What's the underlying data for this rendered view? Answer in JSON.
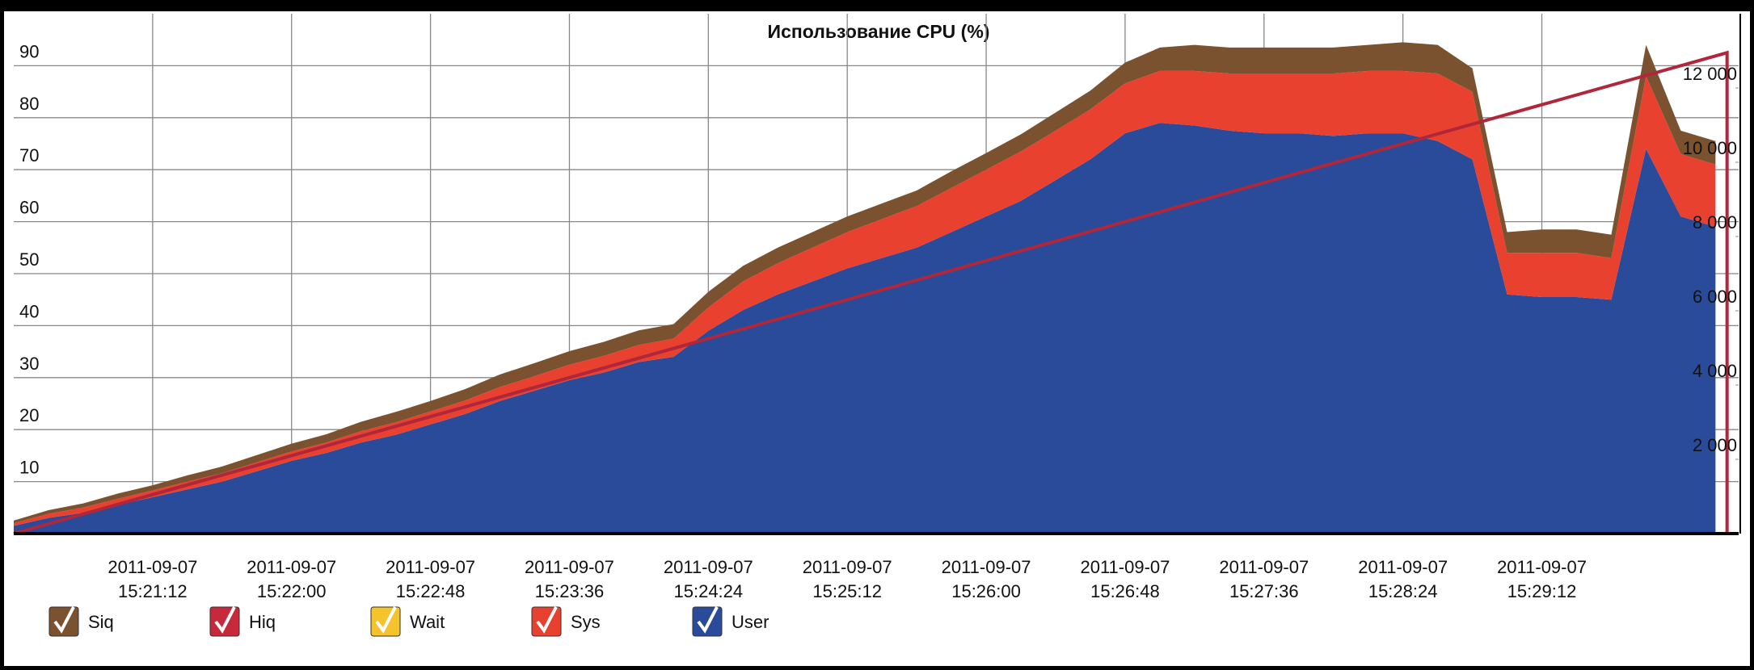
{
  "chart_data": {
    "type": "stacked-area",
    "title": "Использование CPU (%)",
    "x": [
      "2011-09-07T15:20:24",
      "2011-09-07T15:20:36",
      "2011-09-07T15:20:48",
      "2011-09-07T15:21:00",
      "2011-09-07T15:21:12",
      "2011-09-07T15:21:24",
      "2011-09-07T15:21:36",
      "2011-09-07T15:21:48",
      "2011-09-07T15:22:00",
      "2011-09-07T15:22:12",
      "2011-09-07T15:22:24",
      "2011-09-07T15:22:36",
      "2011-09-07T15:22:48",
      "2011-09-07T15:23:00",
      "2011-09-07T15:23:12",
      "2011-09-07T15:23:24",
      "2011-09-07T15:23:36",
      "2011-09-07T15:23:48",
      "2011-09-07T15:24:00",
      "2011-09-07T15:24:12",
      "2011-09-07T15:24:24",
      "2011-09-07T15:24:36",
      "2011-09-07T15:24:48",
      "2011-09-07T15:25:00",
      "2011-09-07T15:25:12",
      "2011-09-07T15:25:24",
      "2011-09-07T15:25:36",
      "2011-09-07T15:25:48",
      "2011-09-07T15:26:00",
      "2011-09-07T15:26:12",
      "2011-09-07T15:26:24",
      "2011-09-07T15:26:36",
      "2011-09-07T15:26:48",
      "2011-09-07T15:27:00",
      "2011-09-07T15:27:12",
      "2011-09-07T15:27:24",
      "2011-09-07T15:27:36",
      "2011-09-07T15:27:48",
      "2011-09-07T15:28:00",
      "2011-09-07T15:28:12",
      "2011-09-07T15:28:24",
      "2011-09-07T15:28:36",
      "2011-09-07T15:28:48",
      "2011-09-07T15:29:00",
      "2011-09-07T15:29:12",
      "2011-09-07T15:29:24",
      "2011-09-07T15:29:36",
      "2011-09-07T15:29:48",
      "2011-09-07T15:30:00",
      "2011-09-07T15:30:12"
    ],
    "xlim": [
      "2011-09-07T15:20:24",
      "2011-09-07T15:30:20"
    ],
    "xticks": [
      {
        "value": "2011-09-07T15:21:12",
        "label": "2011-09-07\n15:21:12"
      },
      {
        "value": "2011-09-07T15:22:00",
        "label": "2011-09-07\n15:22:00"
      },
      {
        "value": "2011-09-07T15:22:48",
        "label": "2011-09-07\n15:22:48"
      },
      {
        "value": "2011-09-07T15:23:36",
        "label": "2011-09-07\n15:23:36"
      },
      {
        "value": "2011-09-07T15:24:24",
        "label": "2011-09-07\n15:24:24"
      },
      {
        "value": "2011-09-07T15:25:12",
        "label": "2011-09-07\n15:25:12"
      },
      {
        "value": "2011-09-07T15:26:00",
        "label": "2011-09-07\n15:26:00"
      },
      {
        "value": "2011-09-07T15:26:48",
        "label": "2011-09-07\n15:26:48"
      },
      {
        "value": "2011-09-07T15:27:36",
        "label": "2011-09-07\n15:27:36"
      },
      {
        "value": "2011-09-07T15:28:24",
        "label": "2011-09-07\n15:28:24"
      },
      {
        "value": "2011-09-07T15:29:12",
        "label": "2011-09-07\n15:29:12"
      }
    ],
    "ylim": [
      0,
      100
    ],
    "yticks": [
      10,
      20,
      30,
      40,
      50,
      60,
      70,
      80,
      90
    ],
    "y2lim": [
      0,
      14000
    ],
    "y2ticks": [
      {
        "value": 2000,
        "label": "2 000"
      },
      {
        "value": 4000,
        "label": "4 000"
      },
      {
        "value": 6000,
        "label": "6 000"
      },
      {
        "value": 8000,
        "label": "8 000"
      },
      {
        "value": 10000,
        "label": "10 000"
      },
      {
        "value": 12000,
        "label": "12 000"
      }
    ],
    "grid": true,
    "stacked": true,
    "series": [
      {
        "name": "Siq",
        "color": "#7a5230",
        "values": [
          0.5,
          0.7,
          0.8,
          1,
          1,
          1.2,
          1.3,
          1.4,
          1.5,
          1.6,
          1.8,
          2,
          2,
          2.2,
          2.4,
          2.5,
          2.6,
          2.7,
          2.8,
          2.8,
          3,
          3,
          3,
          3,
          3,
          3,
          3,
          3.2,
          3.2,
          3.3,
          3.5,
          3.6,
          4,
          4.5,
          5,
          5,
          5,
          5,
          5,
          5,
          5.5,
          5.5,
          4.5,
          4,
          4.5,
          4.5,
          4.5,
          6,
          4.5,
          4.5
        ]
      },
      {
        "name": "Hiq",
        "color": "#c8283c",
        "values": [
          0,
          0,
          0,
          0,
          0,
          0,
          0,
          0,
          0,
          0,
          0,
          0,
          0,
          0,
          0,
          0,
          0,
          0,
          0,
          0,
          0,
          0,
          0,
          0,
          0,
          0,
          0,
          0,
          0,
          0,
          0,
          0,
          0,
          0,
          0,
          0,
          0,
          0,
          0,
          0,
          0,
          0,
          0,
          0,
          0,
          0,
          0,
          0,
          0,
          0
        ]
      },
      {
        "name": "Wait",
        "color": "#f5c32c",
        "values": [
          0,
          0,
          0,
          0,
          0,
          0,
          0,
          0,
          0,
          0,
          0,
          0,
          0,
          0,
          0,
          0,
          0,
          0,
          0,
          0,
          0,
          0,
          0,
          0,
          0,
          0,
          0,
          0,
          0,
          0,
          0,
          0,
          0,
          0,
          0,
          0,
          0,
          0,
          0,
          0,
          0,
          0,
          0,
          0,
          0,
          0,
          0,
          0,
          0,
          0
        ]
      },
      {
        "name": "Sys",
        "color": "#e8412f",
        "values": [
          0.5,
          0.8,
          1,
          1.2,
          1.3,
          1.5,
          1.6,
          1.7,
          1.8,
          2,
          2.2,
          2.4,
          2.5,
          2.6,
          2.7,
          2.8,
          3,
          3.2,
          3.3,
          3.5,
          4.5,
          5.5,
          6,
          6.5,
          7,
          7.5,
          8,
          8.5,
          9,
          9.5,
          9.5,
          9.6,
          9.6,
          10,
          10.5,
          11,
          11.5,
          11.5,
          12,
          12,
          12,
          13,
          13,
          8,
          8.5,
          8.5,
          8,
          14,
          12,
          12
        ]
      },
      {
        "name": "User",
        "color": "#2a4a9a",
        "values": [
          1.5,
          3,
          4,
          5.5,
          7,
          8.5,
          10,
          12,
          14,
          15.5,
          17.5,
          19,
          21,
          23,
          25.5,
          27.5,
          29.5,
          31,
          33,
          34,
          39,
          43,
          46,
          48.5,
          51,
          53,
          55,
          58,
          61,
          64,
          68,
          72,
          77,
          79,
          78.5,
          77.5,
          77,
          77,
          76.5,
          77,
          77,
          75.5,
          72,
          46,
          45.5,
          45.5,
          45,
          74,
          61,
          59
        ]
      },
      {
        "color": "#b0263a",
        "axis": "y2",
        "x": [
          "2011-09-07T15:20:24",
          "2011-09-07T15:30:16",
          "2011-09-07T15:30:16"
        ],
        "values": [
          0,
          12950,
          0
        ]
      }
    ]
  }
}
